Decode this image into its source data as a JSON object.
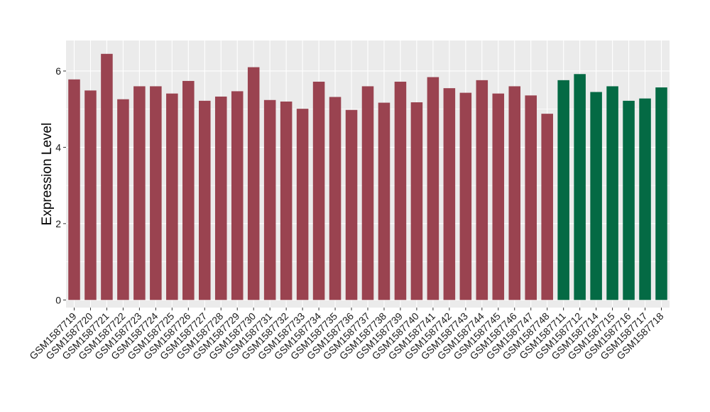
{
  "chart_data": {
    "type": "bar",
    "title": "",
    "xlabel": "",
    "ylabel": "Expression Level",
    "ylim": [
      -0.2,
      6.8
    ],
    "yticks": [
      0,
      2,
      4,
      6
    ],
    "grid": true,
    "legend": "none",
    "categories": [
      "GSM1587719",
      "GSM1587720",
      "GSM1587721",
      "GSM1587722",
      "GSM1587723",
      "GSM1587724",
      "GSM1587725",
      "GSM1587726",
      "GSM1587727",
      "GSM1587728",
      "GSM1587729",
      "GSM1587730",
      "GSM1587731",
      "GSM1587732",
      "GSM1587733",
      "GSM1587734",
      "GSM1587735",
      "GSM1587736",
      "GSM1587737",
      "GSM1587738",
      "GSM1587739",
      "GSM1587740",
      "GSM1587741",
      "GSM1587742",
      "GSM1587743",
      "GSM1587744",
      "GSM1587745",
      "GSM1587746",
      "GSM1587747",
      "GSM1587748",
      "GSM1587711",
      "GSM1587712",
      "GSM1587714",
      "GSM1587715",
      "GSM1587716",
      "GSM1587717",
      "GSM1587718"
    ],
    "values": [
      5.78,
      5.49,
      6.45,
      5.26,
      5.6,
      5.6,
      5.41,
      5.74,
      5.22,
      5.33,
      5.47,
      6.1,
      5.24,
      5.2,
      5.01,
      5.72,
      5.32,
      4.98,
      5.6,
      5.17,
      5.72,
      5.18,
      5.84,
      5.55,
      5.43,
      5.76,
      5.41,
      5.6,
      5.36,
      4.88,
      5.76,
      5.92,
      5.45,
      5.6,
      5.22,
      5.28,
      5.57
    ],
    "group_sizes": [
      30,
      7
    ],
    "colors": [
      "#9a4350",
      "#046a44"
    ]
  }
}
